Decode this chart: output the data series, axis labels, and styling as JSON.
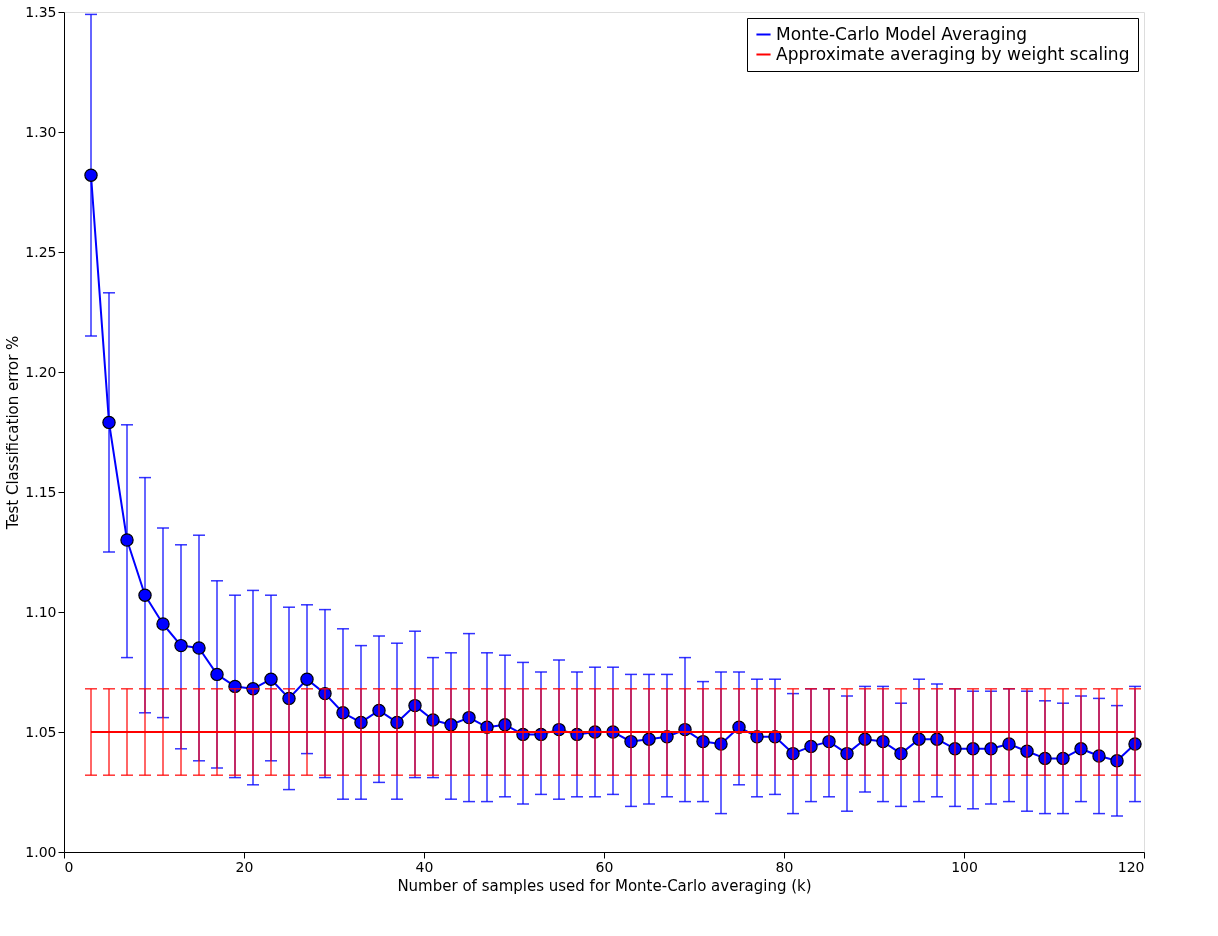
{
  "chart_data": {
    "type": "line",
    "xlabel": "Number of samples used for Monte-Carlo averaging (k)",
    "ylabel": "Test Classification error %",
    "x": [
      3,
      5,
      7,
      9,
      11,
      13,
      15,
      17,
      19,
      21,
      23,
      25,
      27,
      29,
      31,
      33,
      35,
      37,
      39,
      41,
      43,
      45,
      47,
      49,
      51,
      53,
      55,
      57,
      59,
      61,
      63,
      65,
      67,
      69,
      71,
      73,
      75,
      77,
      79,
      81,
      83,
      85,
      87,
      89,
      91,
      93,
      95,
      97,
      99,
      101,
      103,
      105,
      107,
      109,
      111,
      113,
      115,
      117,
      119
    ],
    "series": [
      {
        "name": "Monte-Carlo Model Averaging",
        "color": "#0000ff",
        "marker": "circle",
        "values": [
          1.282,
          1.179,
          1.13,
          1.107,
          1.095,
          1.086,
          1.085,
          1.074,
          1.069,
          1.068,
          1.072,
          1.064,
          1.072,
          1.066,
          1.058,
          1.054,
          1.059,
          1.054,
          1.061,
          1.055,
          1.053,
          1.056,
          1.052,
          1.053,
          1.049,
          1.049,
          1.051,
          1.049,
          1.05,
          1.05,
          1.046,
          1.047,
          1.048,
          1.051,
          1.046,
          1.045,
          1.052,
          1.048,
          1.048,
          1.041,
          1.044,
          1.046,
          1.041,
          1.047,
          1.046,
          1.041,
          1.047,
          1.047,
          1.043,
          1.043,
          1.043,
          1.045,
          1.042,
          1.039,
          1.039,
          1.043,
          1.04,
          1.038,
          1.045
        ],
        "errors": [
          [
            1.215,
            1.349
          ],
          [
            1.125,
            1.233
          ],
          [
            1.081,
            1.178
          ],
          [
            1.058,
            1.156
          ],
          [
            1.056,
            1.135
          ],
          [
            1.043,
            1.128
          ],
          [
            1.038,
            1.132
          ],
          [
            1.035,
            1.113
          ],
          [
            1.031,
            1.107
          ],
          [
            1.028,
            1.109
          ],
          [
            1.038,
            1.107
          ],
          [
            1.026,
            1.102
          ],
          [
            1.041,
            1.103
          ],
          [
            1.031,
            1.101
          ],
          [
            1.022,
            1.093
          ],
          [
            1.022,
            1.086
          ],
          [
            1.029,
            1.09
          ],
          [
            1.022,
            1.087
          ],
          [
            1.031,
            1.092
          ],
          [
            1.031,
            1.081
          ],
          [
            1.022,
            1.083
          ],
          [
            1.021,
            1.091
          ],
          [
            1.021,
            1.083
          ],
          [
            1.023,
            1.082
          ],
          [
            1.02,
            1.079
          ],
          [
            1.024,
            1.075
          ],
          [
            1.022,
            1.08
          ],
          [
            1.023,
            1.075
          ],
          [
            1.023,
            1.077
          ],
          [
            1.024,
            1.077
          ],
          [
            1.019,
            1.074
          ],
          [
            1.02,
            1.074
          ],
          [
            1.023,
            1.074
          ],
          [
            1.021,
            1.081
          ],
          [
            1.021,
            1.071
          ],
          [
            1.016,
            1.075
          ],
          [
            1.028,
            1.075
          ],
          [
            1.023,
            1.072
          ],
          [
            1.024,
            1.072
          ],
          [
            1.016,
            1.066
          ],
          [
            1.021,
            1.068
          ],
          [
            1.023,
            1.068
          ],
          [
            1.017,
            1.065
          ],
          [
            1.025,
            1.069
          ],
          [
            1.021,
            1.069
          ],
          [
            1.019,
            1.062
          ],
          [
            1.021,
            1.072
          ],
          [
            1.023,
            1.07
          ],
          [
            1.019,
            1.068
          ],
          [
            1.018,
            1.067
          ],
          [
            1.02,
            1.067
          ],
          [
            1.021,
            1.068
          ],
          [
            1.017,
            1.067
          ],
          [
            1.016,
            1.063
          ],
          [
            1.016,
            1.062
          ],
          [
            1.021,
            1.065
          ],
          [
            1.016,
            1.064
          ],
          [
            1.015,
            1.061
          ],
          [
            1.021,
            1.069
          ]
        ]
      },
      {
        "name": "Approximate averaging by weight scaling",
        "color": "#ff0000",
        "marker": "none",
        "values": [
          1.05,
          1.05,
          1.05,
          1.05,
          1.05,
          1.05,
          1.05,
          1.05,
          1.05,
          1.05,
          1.05,
          1.05,
          1.05,
          1.05,
          1.05,
          1.05,
          1.05,
          1.05,
          1.05,
          1.05,
          1.05,
          1.05,
          1.05,
          1.05,
          1.05,
          1.05,
          1.05,
          1.05,
          1.05,
          1.05,
          1.05,
          1.05,
          1.05,
          1.05,
          1.05,
          1.05,
          1.05,
          1.05,
          1.05,
          1.05,
          1.05,
          1.05,
          1.05,
          1.05,
          1.05,
          1.05,
          1.05,
          1.05,
          1.05,
          1.05,
          1.05,
          1.05,
          1.05,
          1.05,
          1.05,
          1.05,
          1.05,
          1.05,
          1.05
        ],
        "errors": [
          0.018,
          0.018,
          0.018,
          0.018,
          0.018,
          0.018,
          0.018,
          0.018,
          0.018,
          0.018,
          0.018,
          0.018,
          0.018,
          0.018,
          0.018,
          0.018,
          0.018,
          0.018,
          0.018,
          0.018,
          0.018,
          0.018,
          0.018,
          0.018,
          0.018,
          0.018,
          0.018,
          0.018,
          0.018,
          0.018,
          0.018,
          0.018,
          0.018,
          0.018,
          0.018,
          0.018,
          0.018,
          0.018,
          0.018,
          0.018,
          0.018,
          0.018,
          0.018,
          0.018,
          0.018,
          0.018,
          0.018,
          0.018,
          0.018,
          0.018,
          0.018,
          0.018,
          0.018,
          0.018,
          0.018,
          0.018,
          0.018,
          0.018,
          0.018
        ]
      }
    ],
    "xlim": [
      0,
      120
    ],
    "xticks": [
      0,
      20,
      40,
      60,
      80,
      100,
      120
    ],
    "ylim": [
      1.0,
      1.35
    ],
    "yticks": [
      {
        "value": 1.0,
        "label": "1.00"
      },
      1.05,
      {
        "value": 1.1,
        "label": "1.10"
      },
      1.15,
      {
        "value": 1.2,
        "label": "1.20"
      },
      1.25,
      {
        "value": 1.3,
        "label": "1.30"
      },
      1.35
    ],
    "line_style": "solid",
    "grid": false,
    "legend": "top right"
  }
}
